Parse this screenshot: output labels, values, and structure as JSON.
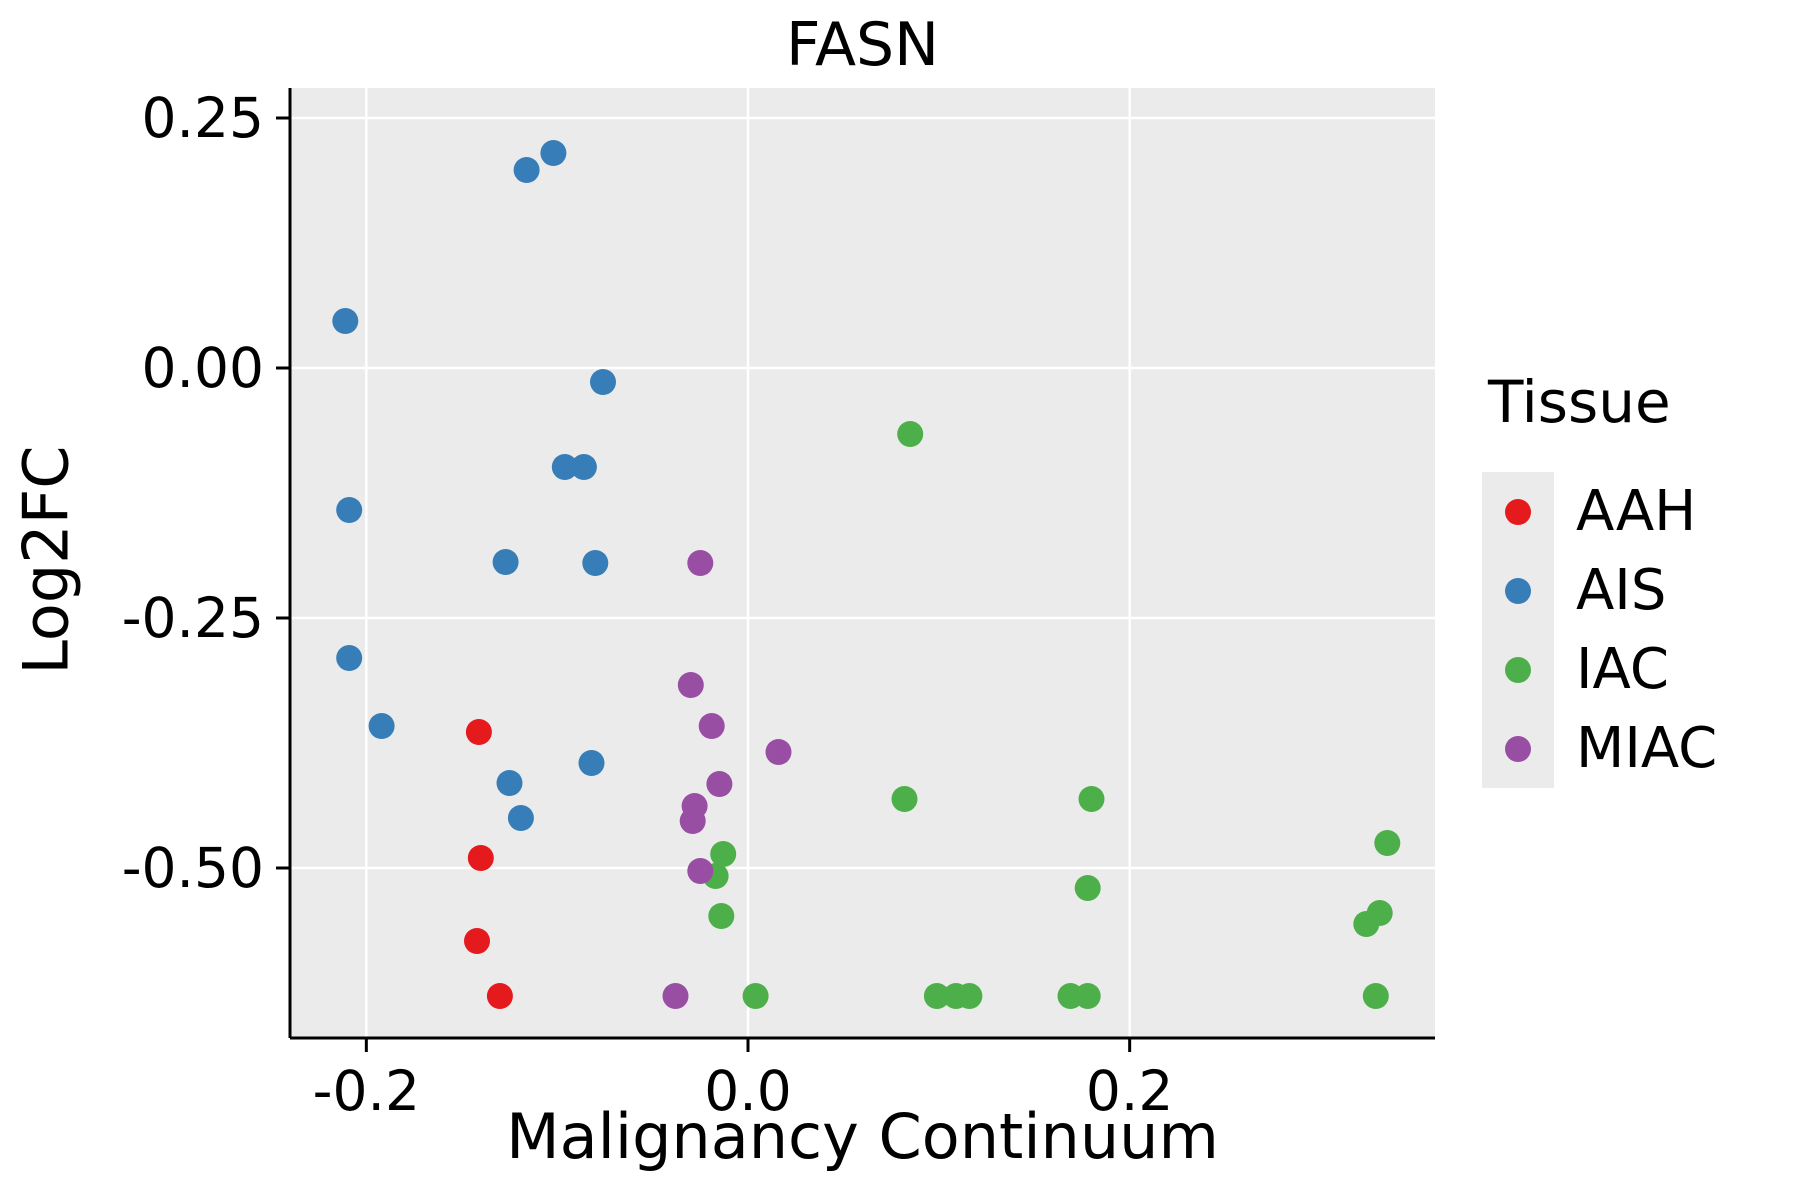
{
  "figure": {
    "background": "#ffffff",
    "text_color": "#000000"
  },
  "chart_data": {
    "type": "scatter",
    "title": "FASN",
    "xlabel": "Malignancy Continuum",
    "ylabel": "Log2FC",
    "xlim": [
      -0.24,
      0.36
    ],
    "ylim": [
      -0.67,
      0.28
    ],
    "x_ticks": [
      -0.2,
      0.0,
      0.2
    ],
    "x_tick_labels": [
      "-0.2",
      "0.0",
      "0.2"
    ],
    "y_ticks": [
      0.25,
      0.0,
      -0.25,
      -0.5
    ],
    "y_tick_labels": [
      "0.25",
      "0.00",
      "-0.25",
      "-0.50"
    ],
    "grid": true,
    "panel_background": "#EBEBEB",
    "grid_color": "#FFFFFF",
    "axis_color": "#000000",
    "marker_radius": 13,
    "legend_title": "Tissue",
    "legend_position": "right",
    "series": [
      {
        "name": "AAH",
        "color": "#E41A1C",
        "points": [
          [
            -0.141,
            -0.364
          ],
          [
            -0.14,
            -0.49
          ],
          [
            -0.142,
            -0.573
          ],
          [
            -0.13,
            -0.628
          ]
        ]
      },
      {
        "name": "AIS",
        "color": "#377EB8",
        "points": [
          [
            -0.116,
            0.198
          ],
          [
            -0.102,
            0.215
          ],
          [
            -0.211,
            0.047
          ],
          [
            -0.076,
            -0.014
          ],
          [
            -0.096,
            -0.099
          ],
          [
            -0.086,
            -0.099
          ],
          [
            -0.209,
            -0.142
          ],
          [
            -0.127,
            -0.194
          ],
          [
            -0.08,
            -0.195
          ],
          [
            -0.209,
            -0.29
          ],
          [
            -0.192,
            -0.358
          ],
          [
            -0.125,
            -0.415
          ],
          [
            -0.082,
            -0.395
          ],
          [
            -0.119,
            -0.45
          ]
        ]
      },
      {
        "name": "IAC",
        "color": "#4DAF4A",
        "points": [
          [
            0.085,
            -0.066
          ],
          [
            0.082,
            -0.431
          ],
          [
            0.18,
            -0.431
          ],
          [
            -0.013,
            -0.486
          ],
          [
            -0.017,
            -0.508
          ],
          [
            0.178,
            -0.52
          ],
          [
            0.335,
            -0.475
          ],
          [
            -0.014,
            -0.548
          ],
          [
            0.324,
            -0.556
          ],
          [
            0.331,
            -0.545
          ],
          [
            0.004,
            -0.628
          ],
          [
            0.099,
            -0.628
          ],
          [
            0.109,
            -0.628
          ],
          [
            0.116,
            -0.628
          ],
          [
            0.169,
            -0.628
          ],
          [
            0.178,
            -0.628
          ],
          [
            0.329,
            -0.628
          ]
        ]
      },
      {
        "name": "MIAC",
        "color": "#984EA3",
        "points": [
          [
            -0.025,
            -0.195
          ],
          [
            -0.03,
            -0.317
          ],
          [
            -0.019,
            -0.358
          ],
          [
            0.016,
            -0.384
          ],
          [
            -0.015,
            -0.416
          ],
          [
            -0.028,
            -0.438
          ],
          [
            -0.029,
            -0.453
          ],
          [
            -0.025,
            -0.503
          ],
          [
            -0.038,
            -0.628
          ]
        ]
      }
    ]
  }
}
